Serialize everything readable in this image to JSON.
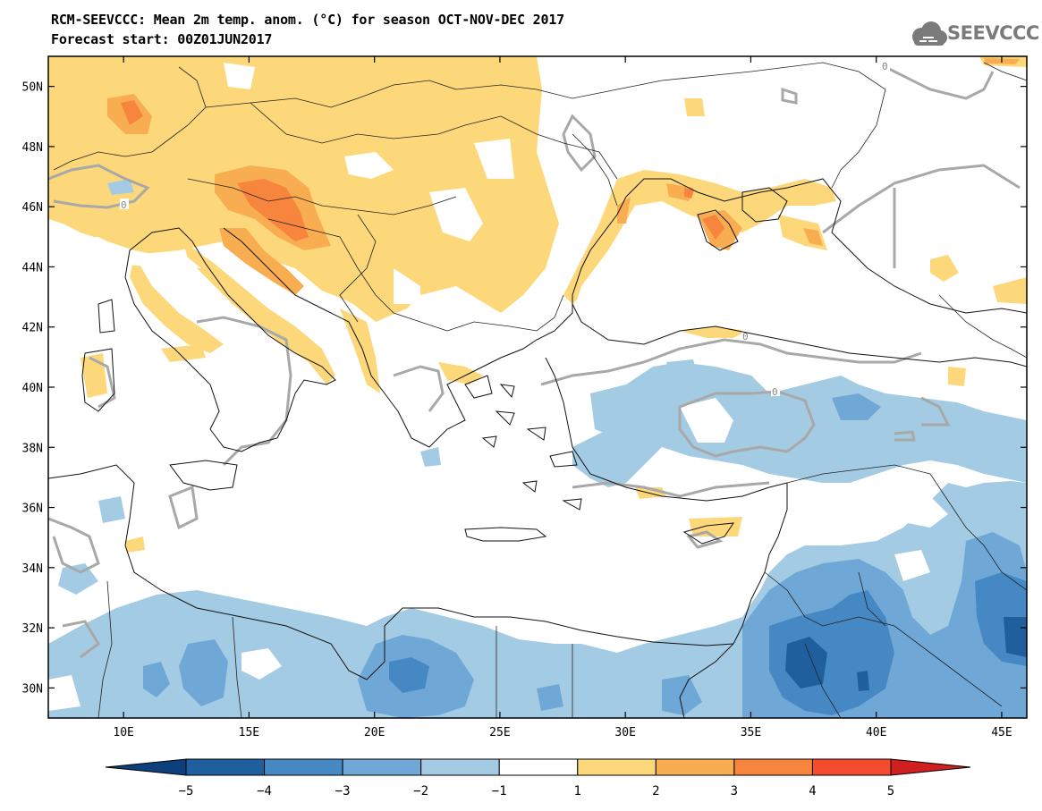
{
  "header": {
    "title_line1": "RCM-SEEVCCC: Mean 2m temp. anom. (°C) for season OCT-NOV-DEC 2017",
    "title_line2": "Forecast start: 00Z01JUN2017",
    "logo_text": "SEEVCCC"
  },
  "map": {
    "lon_range": [
      7,
      46
    ],
    "lat_range": [
      29,
      51
    ],
    "lon_ticks": [
      "10E",
      "15E",
      "20E",
      "25E",
      "30E",
      "35E",
      "40E",
      "45E"
    ],
    "lat_ticks": [
      "50N",
      "48N",
      "46N",
      "44N",
      "42N",
      "40N",
      "38N",
      "36N",
      "34N",
      "32N",
      "30N"
    ],
    "contour_label": "0"
  },
  "colorbar": {
    "labels": [
      "−5",
      "−4",
      "−3",
      "−2",
      "−1",
      "1",
      "2",
      "3",
      "4",
      "5"
    ],
    "colors": {
      "below_-5": "#0d3f7c",
      "-5_-4": "#1f5f9d",
      "-4_-3": "#4688c4",
      "-3_-2": "#6fa8d6",
      "-2_-1": "#a4cbe4",
      "-1_1": "#ffffff",
      "1_2": "#fdd87a",
      "2_3": "#f9ad51",
      "3_4": "#f7853d",
      "4_5": "#f44b2f",
      "above_5": "#d01f1f"
    }
  }
}
